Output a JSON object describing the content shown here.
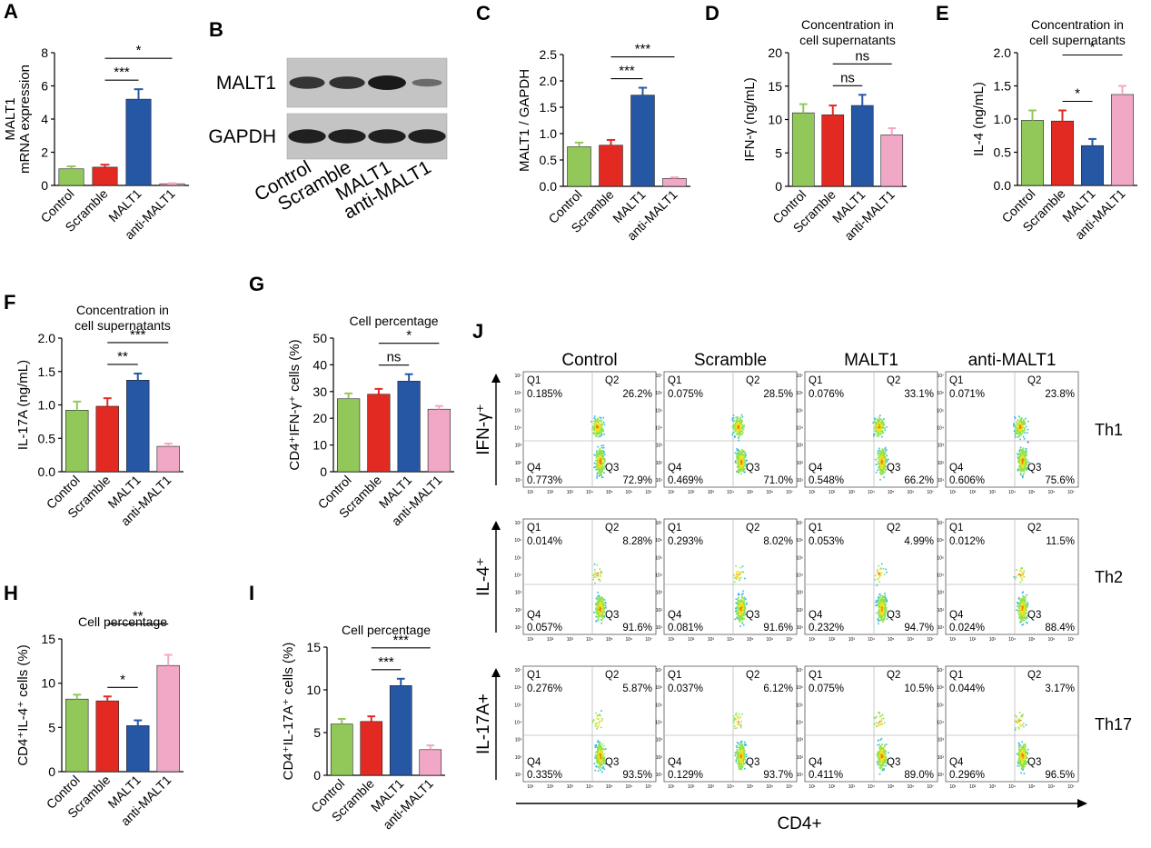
{
  "panels": {
    "A": "A",
    "B": "B",
    "C": "C",
    "D": "D",
    "E": "E",
    "F": "F",
    "G": "G",
    "H": "H",
    "I": "I",
    "J": "J"
  },
  "colors": {
    "Control": "#92c85a",
    "Scramble": "#e32a22",
    "MALT1": "#2557a5",
    "anti-MALT1": "#f1a7c6"
  },
  "chart_data": [
    {
      "id": "A",
      "type": "bar",
      "categories": [
        "Control",
        "Scramble",
        "MALT1",
        "anti-MALT1"
      ],
      "values": [
        1.0,
        1.1,
        5.2,
        0.1
      ],
      "errors": [
        0.15,
        0.15,
        0.6,
        0.03
      ],
      "title": "",
      "title2": "",
      "ylabel": "MALT1",
      "ylabel2": "mRNA expression",
      "ylim": [
        0,
        8
      ],
      "yticks": [
        "0",
        "2",
        "4",
        "6",
        "8"
      ],
      "sig": [
        {
          "from": 1,
          "to": 2,
          "label": "***"
        },
        {
          "from": 1,
          "to": 3,
          "label": "*"
        }
      ]
    },
    {
      "id": "C",
      "type": "bar",
      "categories": [
        "Control",
        "Scramble",
        "MALT1",
        "anti-MALT1"
      ],
      "values": [
        0.75,
        0.78,
        1.73,
        0.15
      ],
      "errors": [
        0.08,
        0.1,
        0.14,
        0.02
      ],
      "title": "",
      "title2": "",
      "ylabel": "MALT1 / GAPDH",
      "ylabel2": "",
      "ylim": [
        0,
        2.5
      ],
      "yticks": [
        "0.0",
        "0.5",
        "1.0",
        "1.5",
        "2.0",
        "2.5"
      ],
      "sig": [
        {
          "from": 1,
          "to": 2,
          "label": "***"
        },
        {
          "from": 1,
          "to": 3,
          "label": "***"
        }
      ]
    },
    {
      "id": "D",
      "type": "bar",
      "categories": [
        "Control",
        "Scramble",
        "MALT1",
        "anti-MALT1"
      ],
      "values": [
        11.0,
        10.7,
        12.1,
        7.7
      ],
      "errors": [
        1.3,
        1.4,
        1.6,
        1.0
      ],
      "title": "Concentration in",
      "title2": "cell supernatants",
      "ylabel": "IFN-γ  (ng/mL)",
      "ylabel2": "",
      "ylim": [
        0,
        20
      ],
      "yticks": [
        "0",
        "5",
        "10",
        "15",
        "20"
      ],
      "sig": [
        {
          "from": 1,
          "to": 2,
          "label": "ns"
        },
        {
          "from": 1,
          "to": 3,
          "label": "ns"
        }
      ]
    },
    {
      "id": "E",
      "type": "bar",
      "categories": [
        "Control",
        "Scramble",
        "MALT1",
        "anti-MALT1"
      ],
      "values": [
        0.98,
        0.97,
        0.6,
        1.37
      ],
      "errors": [
        0.15,
        0.16,
        0.1,
        0.13
      ],
      "title": "Concentration in",
      "title2": "cell supernatants",
      "ylabel": "IL-4  (ng/mL)",
      "ylabel2": "",
      "ylim": [
        0,
        2.0
      ],
      "yticks": [
        "0.0",
        "0.5",
        "1.0",
        "1.5",
        "2.0"
      ],
      "sig": [
        {
          "from": 1,
          "to": 2,
          "label": "*"
        },
        {
          "from": 1,
          "to": 3,
          "label": "*"
        }
      ]
    },
    {
      "id": "F",
      "type": "bar",
      "categories": [
        "Control",
        "Scramble",
        "MALT1",
        "anti-MALT1"
      ],
      "values": [
        0.92,
        0.98,
        1.37,
        0.38
      ],
      "errors": [
        0.13,
        0.12,
        0.1,
        0.04
      ],
      "title": "Concentration in",
      "title2": "cell supernatants",
      "ylabel": "IL-17A  (ng/mL)",
      "ylabel2": "",
      "ylim": [
        0,
        2.0
      ],
      "yticks": [
        "0.0",
        "0.5",
        "1.0",
        "1.5",
        "2.0"
      ],
      "sig": [
        {
          "from": 1,
          "to": 2,
          "label": "**"
        },
        {
          "from": 1,
          "to": 3,
          "label": "***"
        }
      ]
    },
    {
      "id": "G",
      "type": "bar",
      "categories": [
        "Control",
        "Scramble",
        "MALT1",
        "anti-MALT1"
      ],
      "values": [
        27.3,
        29.0,
        33.9,
        23.4
      ],
      "errors": [
        2.0,
        2.0,
        2.6,
        1.2
      ],
      "title": "Cell percentage",
      "title2": "",
      "ylabel": "CD4⁺IFN-γ⁺ cells  (%)",
      "ylabel2": "",
      "ylim": [
        0,
        50
      ],
      "yticks": [
        "0",
        "10",
        "20",
        "30",
        "40",
        "50"
      ],
      "sig": [
        {
          "from": 1,
          "to": 2,
          "label": "ns"
        },
        {
          "from": 1,
          "to": 3,
          "label": "*"
        }
      ]
    },
    {
      "id": "H",
      "type": "bar",
      "categories": [
        "Control",
        "Scramble",
        "MALT1",
        "anti-MALT1"
      ],
      "values": [
        8.2,
        8.0,
        5.2,
        12.0
      ],
      "errors": [
        0.5,
        0.5,
        0.6,
        1.2
      ],
      "title": "Cell percentage",
      "title2": "",
      "ylabel": "CD4⁺IL-4⁺ cells  (%)",
      "ylabel2": "",
      "ylim": [
        0,
        15
      ],
      "yticks": [
        "0",
        "5",
        "10",
        "15"
      ],
      "sig": [
        {
          "from": 1,
          "to": 2,
          "label": "*"
        },
        {
          "from": 1,
          "to": 3,
          "label": "**"
        }
      ]
    },
    {
      "id": "I",
      "type": "bar",
      "categories": [
        "Control",
        "Scramble",
        "MALT1",
        "anti-MALT1"
      ],
      "values": [
        6.0,
        6.3,
        10.5,
        3.0
      ],
      "errors": [
        0.6,
        0.6,
        0.8,
        0.5
      ],
      "title": "Cell percentage",
      "title2": "",
      "ylabel": "CD4⁺IL-17A⁺ cells  (%)",
      "ylabel2": "",
      "ylim": [
        0,
        15
      ],
      "yticks": [
        "0",
        "5",
        "10",
        "15"
      ],
      "sig": [
        {
          "from": 1,
          "to": 2,
          "label": "***"
        },
        {
          "from": 1,
          "to": 3,
          "label": "***"
        }
      ]
    }
  ],
  "blot": {
    "rows": [
      "MALT1",
      "GAPDH"
    ],
    "lanes": [
      "Control",
      "Scramble",
      "MALT1",
      "anti-MALT1"
    ],
    "intensity": [
      [
        0.75,
        0.78,
        1.0,
        0.25
      ],
      [
        0.95,
        0.95,
        0.95,
        0.95
      ]
    ]
  },
  "flow": {
    "columns": [
      "Control",
      "Scramble",
      "MALT1",
      "anti-MALT1"
    ],
    "rows": [
      {
        "y_label": "IFN-γ⁺",
        "th": "Th1",
        "cells": [
          {
            "q1": "0.185%",
            "q2": "26.2%",
            "q3": "72.9%",
            "q4": "0.773%"
          },
          {
            "q1": "0.075%",
            "q2": "28.5%",
            "q3": "71.0%",
            "q4": "0.469%"
          },
          {
            "q1": "0.076%",
            "q2": "33.1%",
            "q3": "66.2%",
            "q4": "0.548%"
          },
          {
            "q1": "0.071%",
            "q2": "23.8%",
            "q3": "75.6%",
            "q4": "0.606%"
          }
        ]
      },
      {
        "y_label": "IL-4⁺",
        "th": "Th2",
        "cells": [
          {
            "q1": "0.014%",
            "q2": "8.28%",
            "q3": "91.6%",
            "q4": "0.057%"
          },
          {
            "q1": "0.293%",
            "q2": "8.02%",
            "q3": "91.6%",
            "q4": "0.081%"
          },
          {
            "q1": "0.053%",
            "q2": "4.99%",
            "q3": "94.7%",
            "q4": "0.232%"
          },
          {
            "q1": "0.012%",
            "q2": "11.5%",
            "q3": "88.4%",
            "q4": "0.024%"
          }
        ]
      },
      {
        "y_label": "IL-17A+",
        "th": "Th17",
        "cells": [
          {
            "q1": "0.276%",
            "q2": "5.87%",
            "q3": "93.5%",
            "q4": "0.335%"
          },
          {
            "q1": "0.037%",
            "q2": "6.12%",
            "q3": "93.7%",
            "q4": "0.129%"
          },
          {
            "q1": "0.075%",
            "q2": "10.5%",
            "q3": "89.0%",
            "q4": "0.411%"
          },
          {
            "q1": "0.044%",
            "q2": "3.17%",
            "q3": "96.5%",
            "q4": "0.296%"
          }
        ]
      }
    ],
    "quadrants": [
      "Q1",
      "Q2",
      "Q3",
      "Q4"
    ],
    "axis_ticks": [
      "10¹",
      "10²",
      "10³",
      "10⁴",
      "10⁵",
      "10⁶",
      "10⁷"
    ],
    "x_axis_label": "CD4+"
  }
}
